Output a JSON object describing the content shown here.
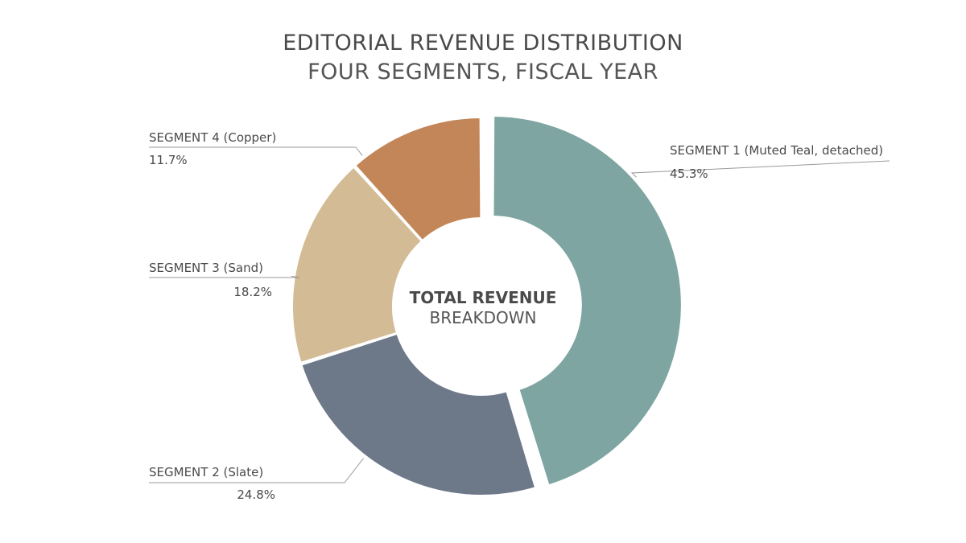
{
  "title": "EDITORIAL REVENUE DISTRIBUTION",
  "subtitle": "FOUR SEGMENTS, FISCAL YEAR",
  "center": {
    "line1": "TOTAL REVENUE",
    "line2": "BREAKDOWN"
  },
  "chart_data": {
    "type": "pie",
    "variant": "donut",
    "title": "EDITORIAL REVENUE DISTRIBUTION",
    "subtitle": "FOUR SEGMENTS, FISCAL YEAR",
    "categories": [
      "SEGMENT 1",
      "SEGMENT 2",
      "SEGMENT 3",
      "SEGMENT 4"
    ],
    "values": [
      45.3,
      24.8,
      18.2,
      11.7
    ],
    "unit": "%",
    "slices": [
      {
        "name": "SEGMENT 1",
        "detail": "(Muted Teal, detached)",
        "value": 45.3,
        "value_label": "45.3%",
        "color": "#7ea5a1",
        "detached": true
      },
      {
        "name": "SEGMENT 2",
        "detail": "(Slate)",
        "value": 24.8,
        "value_label": "24.8%",
        "color": "#6d7889",
        "detached": false
      },
      {
        "name": "SEGMENT 3",
        "detail": "(Sand)",
        "value": 18.2,
        "value_label": "18.2%",
        "color": "#d3bb95",
        "detached": false
      },
      {
        "name": "SEGMENT 4",
        "detail": "(Copper)",
        "value": 11.7,
        "value_label": "11.7%",
        "color": "#c38658",
        "detached": false
      }
    ],
    "start": "12 o'clock",
    "direction": "clockwise",
    "legend": "none (direct labels with leader lines)"
  }
}
